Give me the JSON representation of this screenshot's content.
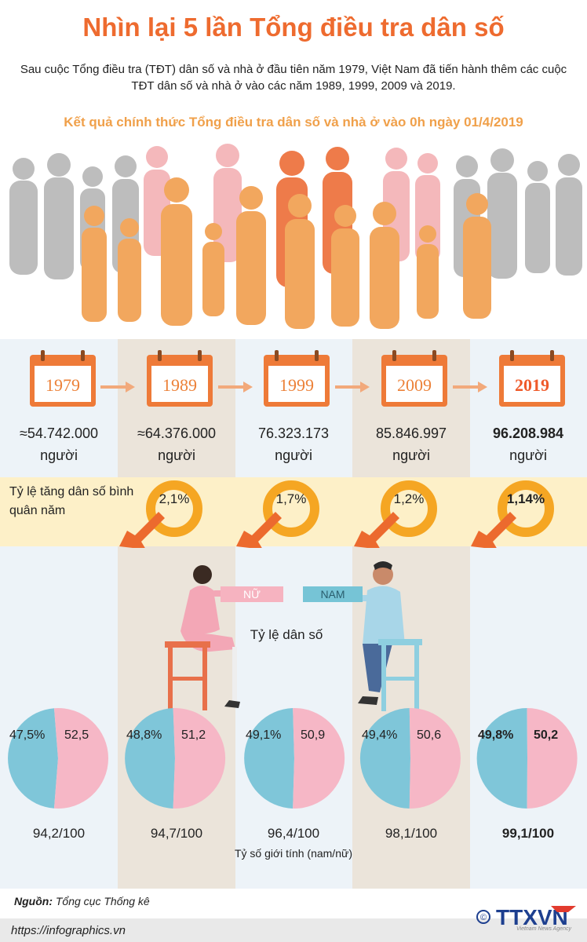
{
  "title": "Nhìn lại 5 lần Tổng điều tra dân số",
  "intro": "Sau cuộc Tổng điều tra (TĐT) dân số và nhà ở đầu tiên năm 1979, Việt Nam đã tiến hành thêm các cuộc TĐT dân số và nhà ở vào các năm 1989, 1999, 2009 và 2019.",
  "subtitle": "Kết quả chính thức Tổng điều tra dân số và nhà ở vào 0h ngày 01/4/2019",
  "colors": {
    "accent": "#ee6b2f",
    "male": "#7fc6d9",
    "female": "#f6b7c6",
    "gauge": "#f5a623"
  },
  "labels": {
    "growth": "Tỷ lệ tăng dân số bình quân năm",
    "ratio": "Tỷ lệ dân số",
    "female_tag": "NỮ",
    "male_tag": "NAM",
    "sex_ratio_note": "Tỷ số giới tính (nam/nữ)"
  },
  "people_unit": "người",
  "chart_data": {
    "type": "pie",
    "categories": [
      "1979",
      "1989",
      "1999",
      "2009",
      "2019"
    ],
    "population": [
      "≈54.742.000",
      "≈64.376.000",
      "76.323.173",
      "85.846.997",
      "96.208.984"
    ],
    "growth_rate": [
      "2,1%",
      "1,7%",
      "1,2%",
      "1,14%"
    ],
    "growth_values": [
      2.1,
      1.7,
      1.2,
      1.14
    ],
    "male_pct_label": [
      "47,5%",
      "48,8%",
      "49,1%",
      "49,4%",
      "49,8%"
    ],
    "female_pct_label": [
      "52,5",
      "51,2",
      "50,9",
      "50,6",
      "50,2"
    ],
    "series": [
      {
        "name": "NAM",
        "values": [
          47.5,
          48.8,
          49.1,
          49.4,
          49.8
        ]
      },
      {
        "name": "NỮ",
        "values": [
          52.5,
          51.2,
          50.9,
          50.6,
          50.2
        ]
      }
    ],
    "sex_ratio": [
      "94,2/100",
      "94,7/100",
      "96,4/100",
      "98,1/100",
      "99,1/100"
    ]
  },
  "source": {
    "label": "Nguồn:",
    "text": "Tổng cục Thống kê"
  },
  "url": "https://infographics.vn",
  "logo": {
    "text": "TTXVN",
    "copyright": "©",
    "sub": "Vietnam News Agency"
  }
}
